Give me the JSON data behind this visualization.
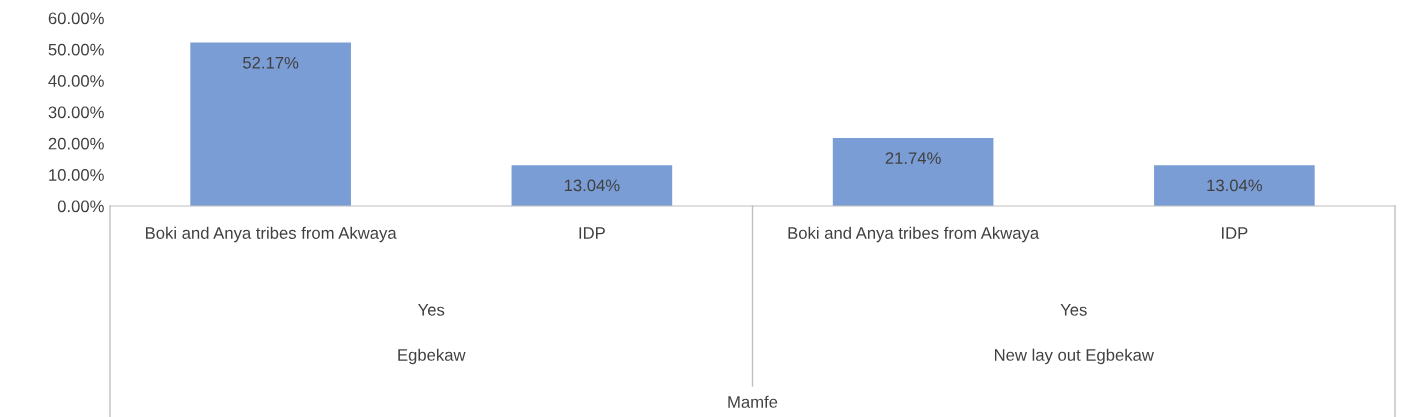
{
  "chart_data": {
    "type": "bar",
    "categories": [
      "Boki and Anya tribes from Akwaya",
      "IDP",
      "Boki and Anya tribes from Akwaya",
      "IDP"
    ],
    "values": [
      52.17,
      13.04,
      21.74,
      13.04
    ],
    "value_labels": [
      "52.17%",
      "13.04%",
      "21.74%",
      "13.04%"
    ],
    "color": "#7b9dd5",
    "ylim": [
      0,
      60
    ],
    "yticks": [
      {
        "value": 0,
        "label": "0.00%"
      },
      {
        "value": 10,
        "label": "10.00%"
      },
      {
        "value": 20,
        "label": "20.00%"
      },
      {
        "value": 30,
        "label": "30.00%"
      },
      {
        "value": 40,
        "label": "40.00%"
      },
      {
        "value": 50,
        "label": "50.00%"
      },
      {
        "value": 60,
        "label": "60.00%"
      }
    ],
    "annotations": [
      "Yes",
      "Yes",
      "Egbekaw",
      "New lay out Egbekaw",
      "Mamfe"
    ],
    "grid": false,
    "legend": false
  }
}
